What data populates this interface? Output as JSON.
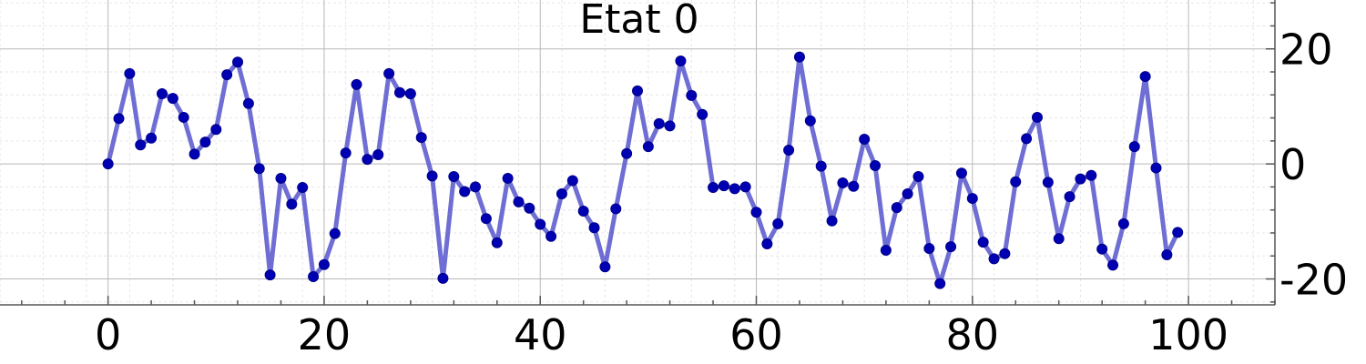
{
  "chart_data": {
    "type": "line",
    "title": "Etat 0",
    "xlabel": "",
    "ylabel": "",
    "xlim": [
      -10,
      108
    ],
    "ylim": [
      -24.5,
      28.5
    ],
    "x_ticks": [
      0,
      20,
      40,
      60,
      80,
      100
    ],
    "y_ticks": [
      -20,
      0,
      20
    ],
    "grid": true,
    "legend": "none",
    "y_axis_side": "right",
    "colors": {
      "line": "#5555cc",
      "marker": "#0000b3"
    },
    "series": [
      {
        "x": [
          0,
          1,
          2,
          3,
          4,
          5,
          6,
          7,
          8,
          9,
          10,
          11,
          12,
          13,
          14,
          15,
          16,
          17,
          18,
          19,
          20,
          21,
          22,
          23,
          24,
          25,
          26,
          27,
          28,
          29,
          30,
          31,
          32,
          33,
          34,
          35,
          36,
          37,
          38,
          39,
          40,
          41,
          42,
          43,
          44,
          45,
          46,
          47,
          48,
          49,
          50,
          51,
          52,
          53,
          54,
          55,
          56,
          57,
          58,
          59,
          60,
          61,
          62,
          63,
          64,
          65,
          66,
          67,
          68,
          69,
          70,
          71,
          72,
          73,
          74,
          75,
          76,
          77,
          78,
          79,
          80,
          81,
          82,
          83,
          84,
          85,
          86,
          87,
          88,
          89,
          90,
          91,
          92,
          93,
          94,
          95,
          96,
          97,
          98,
          99
        ],
        "y": [
          0,
          7.9,
          15.7,
          3.3,
          4.5,
          12.2,
          11.4,
          8.1,
          1.7,
          3.8,
          6.0,
          15.5,
          17.7,
          10.5,
          -0.8,
          -19.3,
          -2.5,
          -7.0,
          -4.1,
          -19.6,
          -17.5,
          -12.1,
          1.9,
          13.8,
          0.8,
          1.6,
          15.7,
          12.4,
          12.2,
          4.6,
          -2.1,
          -19.9,
          -2.2,
          -4.8,
          -4.0,
          -9.5,
          -13.7,
          -2.5,
          -6.6,
          -7.7,
          -10.5,
          -12.6,
          -5.2,
          -2.9,
          -8.2,
          -11.1,
          -17.9,
          -7.8,
          1.8,
          12.7,
          3.0,
          7.0,
          6.6,
          17.9,
          11.9,
          8.6,
          -4.1,
          -3.8,
          -4.3,
          -4.0,
          -8.4,
          -13.9,
          -10.4,
          2.4,
          18.6,
          7.5,
          -0.4,
          -9.9,
          -3.3,
          -3.9,
          4.3,
          -0.3,
          -15.0,
          -7.6,
          -5.2,
          -2.2,
          -14.7,
          -20.8,
          -14.4,
          -1.6,
          -6.0,
          -13.6,
          -16.5,
          -15.6,
          -3.1,
          4.4,
          8.1,
          -3.2,
          -13.0,
          -5.7,
          -2.6,
          -2.0,
          -14.8,
          -17.6,
          -10.4,
          3.0,
          15.2,
          -0.7,
          -15.8,
          -11.9
        ]
      }
    ]
  }
}
